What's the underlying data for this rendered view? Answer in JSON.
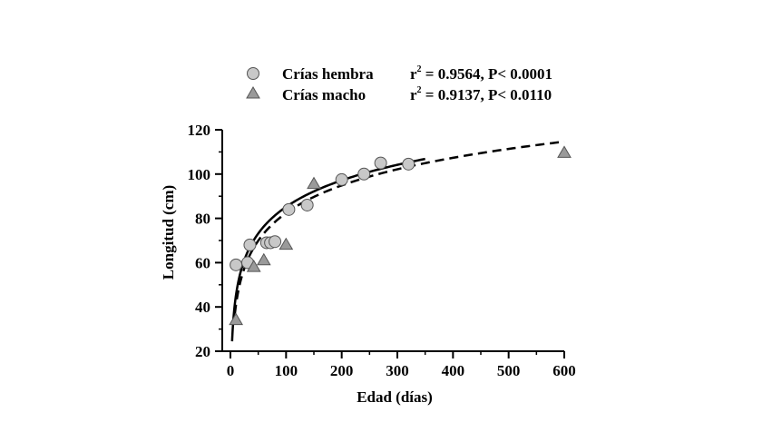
{
  "chart_data": {
    "type": "scatter",
    "xlabel": "Edad (días)",
    "ylabel": "Longitud (cm)",
    "xlim": [
      0,
      600
    ],
    "ylim": [
      20,
      120
    ],
    "x_ticks": [
      "0",
      "100",
      "200",
      "300",
      "400",
      "500",
      "600"
    ],
    "y_ticks": [
      "20",
      "40",
      "60",
      "80",
      "100",
      "120"
    ],
    "grid": false,
    "legend_position": "top",
    "series": [
      {
        "name": "Crías hembra",
        "marker": "circle",
        "marker_color": "#c8c8c8",
        "r2_label": "r² = 0.9564, P< 0.0001",
        "r2_base": "r",
        "r2_sup": "2",
        "r2_rest": " = 0.9564, P< 0.0001",
        "points": [
          [
            10,
            59
          ],
          [
            31,
            60
          ],
          [
            35,
            68
          ],
          [
            65,
            69
          ],
          [
            72,
            69
          ],
          [
            80,
            69.5
          ],
          [
            105,
            84
          ],
          [
            138,
            86
          ],
          [
            200,
            97.5
          ],
          [
            240,
            100
          ],
          [
            270,
            105
          ],
          [
            320,
            104.5
          ]
        ],
        "fit": {
          "form": "a + b*ln(x)",
          "a": 5.5,
          "b": 17.3,
          "x_range": [
            3,
            350
          ],
          "line_style": "solid"
        }
      },
      {
        "name": "Crías macho",
        "marker": "triangle",
        "marker_color": "#9a9a9a",
        "r2_label": "r² = 0.9137, P< 0.0110",
        "r2_base": "r",
        "r2_sup": "2",
        "r2_rest": " = 0.9137, P< 0.0110",
        "points": [
          [
            10,
            34
          ],
          [
            42,
            58
          ],
          [
            60,
            61
          ],
          [
            100,
            68
          ],
          [
            150,
            95.5
          ],
          [
            600,
            109.5
          ]
        ],
        "fit": {
          "form": "a + b*ln(x)",
          "a": -0.5,
          "b": 18.0,
          "x_range": [
            8,
            600
          ],
          "line_style": "dashed"
        }
      }
    ]
  }
}
